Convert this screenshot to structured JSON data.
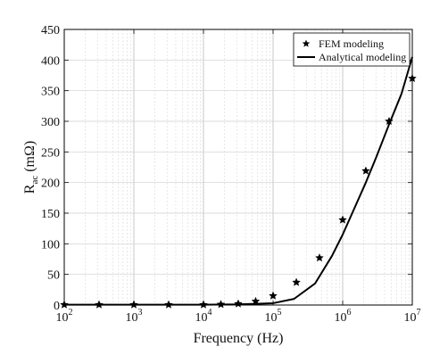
{
  "caption_fragment": "",
  "chart_data": {
    "type": "line",
    "title": "",
    "xlabel": "Frequency (Hz)",
    "ylabel_main": "R",
    "ylabel_sub": "ac",
    "ylabel_unit": "(mΩ)",
    "x_scale": "log",
    "xlim": [
      100,
      10000000
    ],
    "ylim": [
      0,
      450
    ],
    "grid": true,
    "legend_position": "top-right",
    "x_ticks": [
      {
        "base": "10",
        "exp": "2",
        "value": 100
      },
      {
        "base": "10",
        "exp": "3",
        "value": 1000
      },
      {
        "base": "10",
        "exp": "4",
        "value": 10000
      },
      {
        "base": "10",
        "exp": "5",
        "value": 100000
      },
      {
        "base": "10",
        "exp": "6",
        "value": 1000000
      },
      {
        "base": "10",
        "exp": "7",
        "value": 10000000
      }
    ],
    "y_ticks": [
      "0",
      "50",
      "100",
      "150",
      "200",
      "250",
      "300",
      "350",
      "400",
      "450"
    ],
    "series": [
      {
        "name": "FEM modeling",
        "kind": "scatter",
        "marker": "star",
        "color": "#000000",
        "points": [
          {
            "x": 100,
            "y": 0.5
          },
          {
            "x": 316,
            "y": 0.5
          },
          {
            "x": 1000,
            "y": 0.5
          },
          {
            "x": 3160,
            "y": 0.5
          },
          {
            "x": 10000,
            "y": 0.5
          },
          {
            "x": 17800,
            "y": 1
          },
          {
            "x": 31600,
            "y": 2
          },
          {
            "x": 56200,
            "y": 6
          },
          {
            "x": 100000,
            "y": 15
          },
          {
            "x": 216000,
            "y": 37
          },
          {
            "x": 464000,
            "y": 77
          },
          {
            "x": 1000000,
            "y": 139
          },
          {
            "x": 2150000,
            "y": 219
          },
          {
            "x": 4640000,
            "y": 300
          },
          {
            "x": 10000000,
            "y": 370
          }
        ]
      },
      {
        "name": "Analytical modeling",
        "kind": "line",
        "color": "#000000",
        "points": [
          {
            "x": 100,
            "y": 0.5
          },
          {
            "x": 1000,
            "y": 0.5
          },
          {
            "x": 10000,
            "y": 0.5
          },
          {
            "x": 31600,
            "y": 1
          },
          {
            "x": 100000,
            "y": 3
          },
          {
            "x": 200000,
            "y": 10
          },
          {
            "x": 400000,
            "y": 35
          },
          {
            "x": 700000,
            "y": 80
          },
          {
            "x": 1000000,
            "y": 115
          },
          {
            "x": 1500000,
            "y": 160
          },
          {
            "x": 2150000,
            "y": 200
          },
          {
            "x": 3000000,
            "y": 240
          },
          {
            "x": 4640000,
            "y": 295
          },
          {
            "x": 7000000,
            "y": 345
          },
          {
            "x": 10000000,
            "y": 405
          }
        ]
      }
    ]
  }
}
